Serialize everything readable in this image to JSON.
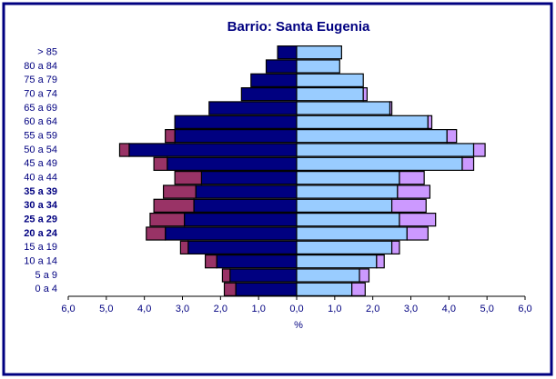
{
  "chart_data": {
    "type": "pyramid",
    "title": "Barrio: Santa Eugenia",
    "xlabel": "%",
    "categories": [
      "> 85",
      "80 a 84",
      "75 a 79",
      "70 a 74",
      "65 a 69",
      "60 a 64",
      "55 a 59",
      "50 a 54",
      "45 a 49",
      "40 a 44",
      "35 a 39",
      "30 a 34",
      "25 a 29",
      "20 a 24",
      "15 a 19",
      "10 a 14",
      "5 a 9",
      "0 a 4"
    ],
    "series": [
      {
        "color": "#000080",
        "side": "left",
        "values": [
          0.5,
          0.8,
          1.2,
          1.45,
          2.3,
          3.2,
          3.2,
          4.4,
          3.4,
          2.5,
          2.65,
          2.7,
          2.95,
          3.45,
          2.85,
          2.1,
          1.75,
          1.6
        ]
      },
      {
        "color": "#993366",
        "side": "left",
        "values": [
          0,
          0,
          0,
          0,
          0,
          0,
          0.25,
          0.25,
          0.35,
          0.7,
          0.85,
          1.05,
          0.9,
          0.5,
          0.2,
          0.3,
          0.2,
          0.3
        ]
      },
      {
        "color": "#99ccff",
        "side": "right",
        "values": [
          1.18,
          1.13,
          1.75,
          1.75,
          2.45,
          3.45,
          3.95,
          4.65,
          4.35,
          2.7,
          2.65,
          2.5,
          2.7,
          2.9,
          2.5,
          2.1,
          1.65,
          1.45
        ]
      },
      {
        "color": "#cc99ff",
        "side": "right",
        "values": [
          0,
          0,
          0,
          0.1,
          0.05,
          0.1,
          0.25,
          0.3,
          0.3,
          0.65,
          0.85,
          0.9,
          0.95,
          0.55,
          0.2,
          0.2,
          0.25,
          0.35
        ]
      }
    ],
    "xlim": [
      -6,
      6
    ],
    "xticks": [
      {
        "value": -6,
        "label": "6,0"
      },
      {
        "value": -5,
        "label": "5,0"
      },
      {
        "value": -4,
        "label": "4,0"
      },
      {
        "value": -3,
        "label": "3,0"
      },
      {
        "value": -2,
        "label": "2,0"
      },
      {
        "value": -1,
        "label": "1,0"
      },
      {
        "value": 0,
        "label": "0,0"
      },
      {
        "value": 1,
        "label": "1,0"
      },
      {
        "value": 2,
        "label": "2,0"
      },
      {
        "value": 3,
        "label": "3,0"
      },
      {
        "value": 4,
        "label": "4,0"
      },
      {
        "value": 5,
        "label": "5,0"
      },
      {
        "value": 6,
        "label": "6,0"
      }
    ]
  }
}
